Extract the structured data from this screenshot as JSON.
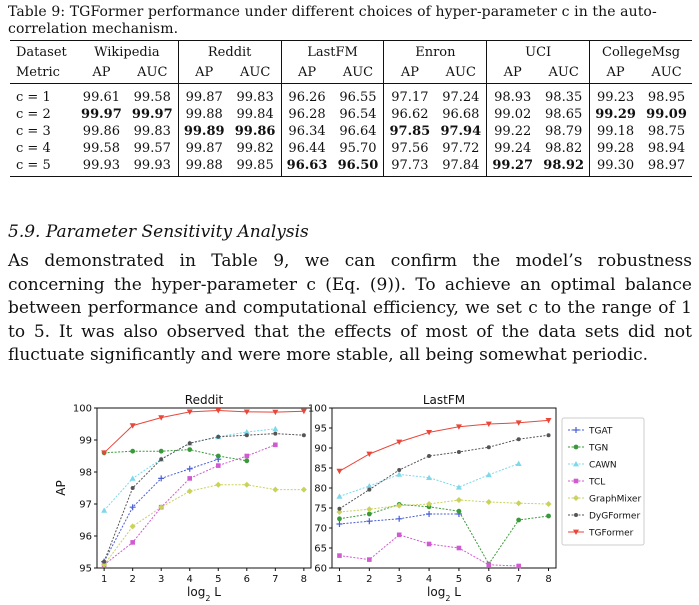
{
  "caption": "Table 9: TGFormer performance under different choices of hyper-parameter c in the auto-correlation mechanism.",
  "table": {
    "dataset_label": "Dataset",
    "metric_label": "Metric",
    "datasets": [
      "Wikipedia",
      "Reddit",
      "LastFM",
      "Enron",
      "UCI",
      "CollegeMsg"
    ],
    "metrics": [
      "AP",
      "AUC"
    ],
    "rows": [
      {
        "label": "c = 1",
        "values": [
          "99.61",
          "99.58",
          "99.87",
          "99.83",
          "96.26",
          "96.55",
          "97.17",
          "97.24",
          "98.93",
          "98.35",
          "99.23",
          "98.95"
        ],
        "bold": []
      },
      {
        "label": "c = 2",
        "values": [
          "99.97",
          "99.97",
          "99.88",
          "99.84",
          "96.28",
          "96.54",
          "96.62",
          "96.68",
          "99.02",
          "98.65",
          "99.29",
          "99.09"
        ],
        "bold": [
          0,
          1,
          10,
          11
        ]
      },
      {
        "label": "c = 3",
        "values": [
          "99.86",
          "99.83",
          "99.89",
          "99.86",
          "96.34",
          "96.64",
          "97.85",
          "97.94",
          "99.22",
          "98.79",
          "99.18",
          "98.75"
        ],
        "bold": [
          2,
          3,
          6,
          7
        ]
      },
      {
        "label": "c = 4",
        "values": [
          "99.58",
          "99.57",
          "99.87",
          "99.82",
          "96.44",
          "95.70",
          "97.56",
          "97.72",
          "99.24",
          "98.82",
          "99.28",
          "98.94"
        ],
        "bold": []
      },
      {
        "label": "c = 5",
        "values": [
          "99.93",
          "99.93",
          "99.88",
          "99.85",
          "96.63",
          "96.50",
          "97.73",
          "97.84",
          "99.27",
          "98.92",
          "99.30",
          "98.97"
        ],
        "bold": [
          4,
          5,
          8,
          9
        ]
      }
    ]
  },
  "section_title": "5.9. Parameter Sensitivity Analysis",
  "paragraph": "As demonstrated in Table 9, we can confirm the model’s robustness concerning the hyper-parameter c (Eq. (9)). To achieve an optimal balance between performance and computational efficiency, we set c to the range of 1 to 5. It was also observed that the effects of most of the data sets did not fluctuate significantly and were more stable, all being somewhat periodic.",
  "chart_data": [
    {
      "type": "line",
      "title": "Reddit",
      "xlabel": "log2 L",
      "ylabel": "AP",
      "x": [
        1,
        2,
        3,
        4,
        5,
        6,
        7,
        8
      ],
      "ylim": [
        95,
        100
      ],
      "yticks": [
        95,
        96,
        97,
        98,
        99,
        100
      ],
      "series": [
        {
          "name": "TGAT",
          "color": "#4a5fd6",
          "marker": "plus",
          "values": [
            95.2,
            96.9,
            97.8,
            98.1,
            98.4,
            null,
            null,
            null
          ]
        },
        {
          "name": "TGN",
          "color": "#3a9a3a",
          "marker": "circle",
          "values": [
            98.6,
            98.65,
            98.65,
            98.7,
            98.5,
            98.35,
            null,
            null
          ]
        },
        {
          "name": "CAWN",
          "color": "#7fd8ea",
          "marker": "triangle",
          "values": [
            96.8,
            97.8,
            98.4,
            98.9,
            99.1,
            99.25,
            99.35,
            null
          ]
        },
        {
          "name": "TCL",
          "color": "#d05ad0",
          "marker": "square",
          "values": [
            95.1,
            95.8,
            96.9,
            97.8,
            98.2,
            98.5,
            98.85,
            null
          ]
        },
        {
          "name": "GraphMixer",
          "color": "#c9d25a",
          "marker": "diamond",
          "values": [
            95.1,
            96.3,
            96.9,
            97.4,
            97.6,
            97.6,
            97.45,
            97.45
          ]
        },
        {
          "name": "DyGFormer",
          "color": "#555555",
          "marker": "dot",
          "values": [
            95.2,
            97.5,
            98.4,
            98.9,
            99.1,
            99.15,
            99.2,
            99.15
          ]
        },
        {
          "name": "TGFormer",
          "color": "#e8473a",
          "marker": "tri-down",
          "values": [
            98.6,
            99.45,
            99.7,
            99.88,
            99.92,
            99.88,
            99.87,
            99.9
          ]
        }
      ]
    },
    {
      "type": "line",
      "title": "LastFM",
      "xlabel": "log2 L",
      "ylabel": "",
      "x": [
        1,
        2,
        3,
        4,
        5,
        6,
        7,
        8
      ],
      "ylim": [
        60,
        100
      ],
      "yticks": [
        60,
        65,
        70,
        75,
        80,
        85,
        90,
        95,
        100
      ],
      "series": [
        {
          "name": "TGAT",
          "color": "#4a5fd6",
          "marker": "plus",
          "values": [
            71,
            71.7,
            72.3,
            73.5,
            73.5,
            null,
            null,
            null
          ]
        },
        {
          "name": "TGN",
          "color": "#3a9a3a",
          "marker": "circle",
          "values": [
            72.3,
            73.5,
            75.9,
            75.3,
            74.2,
            61,
            72,
            73
          ]
        },
        {
          "name": "CAWN",
          "color": "#7fd8ea",
          "marker": "triangle",
          "values": [
            77.9,
            80.5,
            83.4,
            82.6,
            80.2,
            83.3,
            86.1,
            null
          ]
        },
        {
          "name": "TCL",
          "color": "#d05ad0",
          "marker": "square",
          "values": [
            63.1,
            62.1,
            68.3,
            66,
            65,
            60.8,
            60.5,
            null
          ]
        },
        {
          "name": "GraphMixer",
          "color": "#c9d25a",
          "marker": "diamond",
          "values": [
            74,
            74.7,
            75.6,
            76,
            77,
            76.5,
            76.2,
            76
          ]
        },
        {
          "name": "DyGFormer",
          "color": "#555555",
          "marker": "dot",
          "values": [
            74.8,
            79.6,
            84.5,
            88,
            89,
            90.2,
            92.2,
            93.2
          ]
        },
        {
          "name": "TGFormer",
          "color": "#e8473a",
          "marker": "tri-down",
          "values": [
            84.2,
            88.5,
            91.5,
            93.9,
            95.3,
            96,
            96.3,
            96.9
          ]
        }
      ]
    }
  ]
}
